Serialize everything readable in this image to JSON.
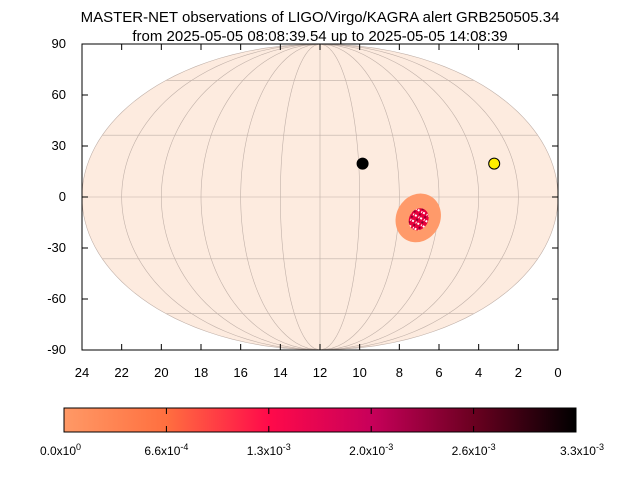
{
  "chart_data": {
    "type": "scatter",
    "title": "MASTER-NET observations of LIGO/Virgo/KAGRA alert GRB250505.34",
    "subtitle": "from 2025-05-05 08:08:39.54 up to 2025-05-05 14:08:39",
    "projection": "mollweide",
    "xlabel": "",
    "ylabel": "",
    "xlim": [
      24,
      0
    ],
    "ylim": [
      -90,
      90
    ],
    "x_ticks": [
      "24",
      "22",
      "20",
      "18",
      "16",
      "14",
      "12",
      "10",
      "8",
      "6",
      "4",
      "2",
      "0"
    ],
    "y_ticks": [
      "90",
      "60",
      "30",
      "0",
      "-30",
      "-60",
      "-90"
    ],
    "grid": true,
    "sky_color": "#fdebdf",
    "points": [
      {
        "x": 9.8,
        "y": 16,
        "color": "#000000"
      },
      {
        "x": 3.0,
        "y": 16,
        "color": "#ffee00"
      }
    ],
    "probability_region": {
      "center_ra": 7.0,
      "center_dec": -10,
      "outer_color": "#ff9a6a",
      "inner_color": "#e8003c"
    },
    "colorbar": {
      "colors": [
        "#ff9966",
        "#ff6f3f",
        "#ff0a4a",
        "#c8005a",
        "#6a0020",
        "#000000"
      ],
      "tick_labels": [
        {
          "mantissa": "0.0x10",
          "exp": "0"
        },
        {
          "mantissa": "6.6x10",
          "exp": "-4"
        },
        {
          "mantissa": "1.3x10",
          "exp": "-3"
        },
        {
          "mantissa": "2.0x10",
          "exp": "-3"
        },
        {
          "mantissa": "2.6x10",
          "exp": "-3"
        },
        {
          "mantissa": "3.3x10",
          "exp": "-3"
        }
      ]
    }
  }
}
